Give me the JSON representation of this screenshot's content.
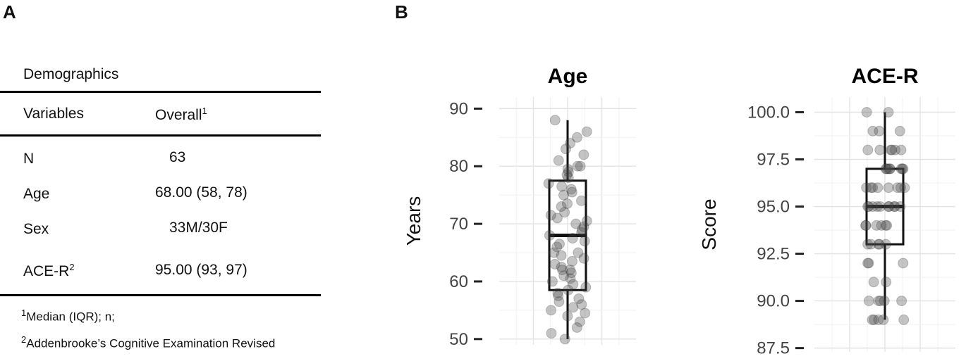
{
  "panels": {
    "a": "A",
    "b": "B"
  },
  "table": {
    "caption": "Demographics",
    "headers": {
      "variables": "Variables",
      "overall": "Overall",
      "overall_sup": "1"
    },
    "rows": [
      {
        "variable": "N",
        "variable_sup": "",
        "value": "63"
      },
      {
        "variable": "Age",
        "variable_sup": "",
        "value": "68.00 (58, 78)"
      },
      {
        "variable": "Sex",
        "variable_sup": "",
        "value": "33M/30F"
      },
      {
        "variable": "ACE-R",
        "variable_sup": "2",
        "value": "95.00 (93, 97)"
      }
    ],
    "footnotes": [
      {
        "sup": "1",
        "text": "Median (IQR);  n;"
      },
      {
        "sup": "2",
        "text": "Addenbrooke’s Cognitive Examination Revised"
      }
    ]
  },
  "chart_data": [
    {
      "type": "box",
      "title": "Age",
      "ylabel": "Years",
      "xlabel": "",
      "ylim": [
        49,
        92
      ],
      "yticks": [
        50,
        60,
        70,
        80,
        90
      ],
      "ytick_labels": [
        "50",
        "60",
        "70",
        "80",
        "90"
      ],
      "grid": true,
      "box": {
        "whisker_low": 50,
        "q1": 58.5,
        "median": 68,
        "q3": 77.5,
        "whisker_high": 88
      },
      "points": [
        88,
        85,
        84,
        83,
        81,
        80,
        80,
        79.5,
        79,
        78,
        77,
        76,
        75.5,
        75,
        74,
        73,
        72,
        71,
        70.5,
        70,
        69,
        68.5,
        68,
        67.5,
        67,
        66,
        65,
        65,
        64,
        63,
        62.5,
        62,
        62,
        61,
        60.5,
        60,
        59.5,
        59,
        58,
        57.5,
        57,
        56,
        55.5,
        55,
        54,
        53,
        52,
        51,
        50,
        86,
        82,
        78.5,
        76.5,
        73.5,
        71.5,
        69.5,
        66.5,
        64.5,
        63.5,
        61.5,
        58.5,
        56.5,
        54.5
      ]
    },
    {
      "type": "box",
      "title": "ACE-R",
      "ylabel": "Score",
      "xlabel": "",
      "ylim": [
        87.3,
        100.8
      ],
      "yticks": [
        87.5,
        90.0,
        92.5,
        95.0,
        97.5,
        100.0
      ],
      "ytick_labels": [
        "87.5",
        "90.0",
        "92.5",
        "95.0",
        "97.5",
        "100.0"
      ],
      "grid": true,
      "box": {
        "whisker_low": 89,
        "q1": 93,
        "median": 95,
        "q3": 97,
        "whisker_high": 100
      },
      "points": [
        100,
        100,
        99,
        99,
        99,
        98,
        98,
        98,
        98,
        98,
        97,
        97,
        97,
        97,
        97,
        97,
        97,
        96,
        96,
        96,
        96,
        96,
        96,
        96,
        95,
        95,
        95,
        95,
        95,
        95,
        95,
        95,
        95,
        94,
        94,
        94,
        94,
        94,
        93,
        93,
        93,
        93,
        92,
        92,
        92,
        91,
        91,
        90,
        90,
        90,
        90,
        90,
        89,
        89,
        89,
        89,
        89,
        96,
        97,
        95,
        94,
        98,
        93
      ]
    }
  ]
}
